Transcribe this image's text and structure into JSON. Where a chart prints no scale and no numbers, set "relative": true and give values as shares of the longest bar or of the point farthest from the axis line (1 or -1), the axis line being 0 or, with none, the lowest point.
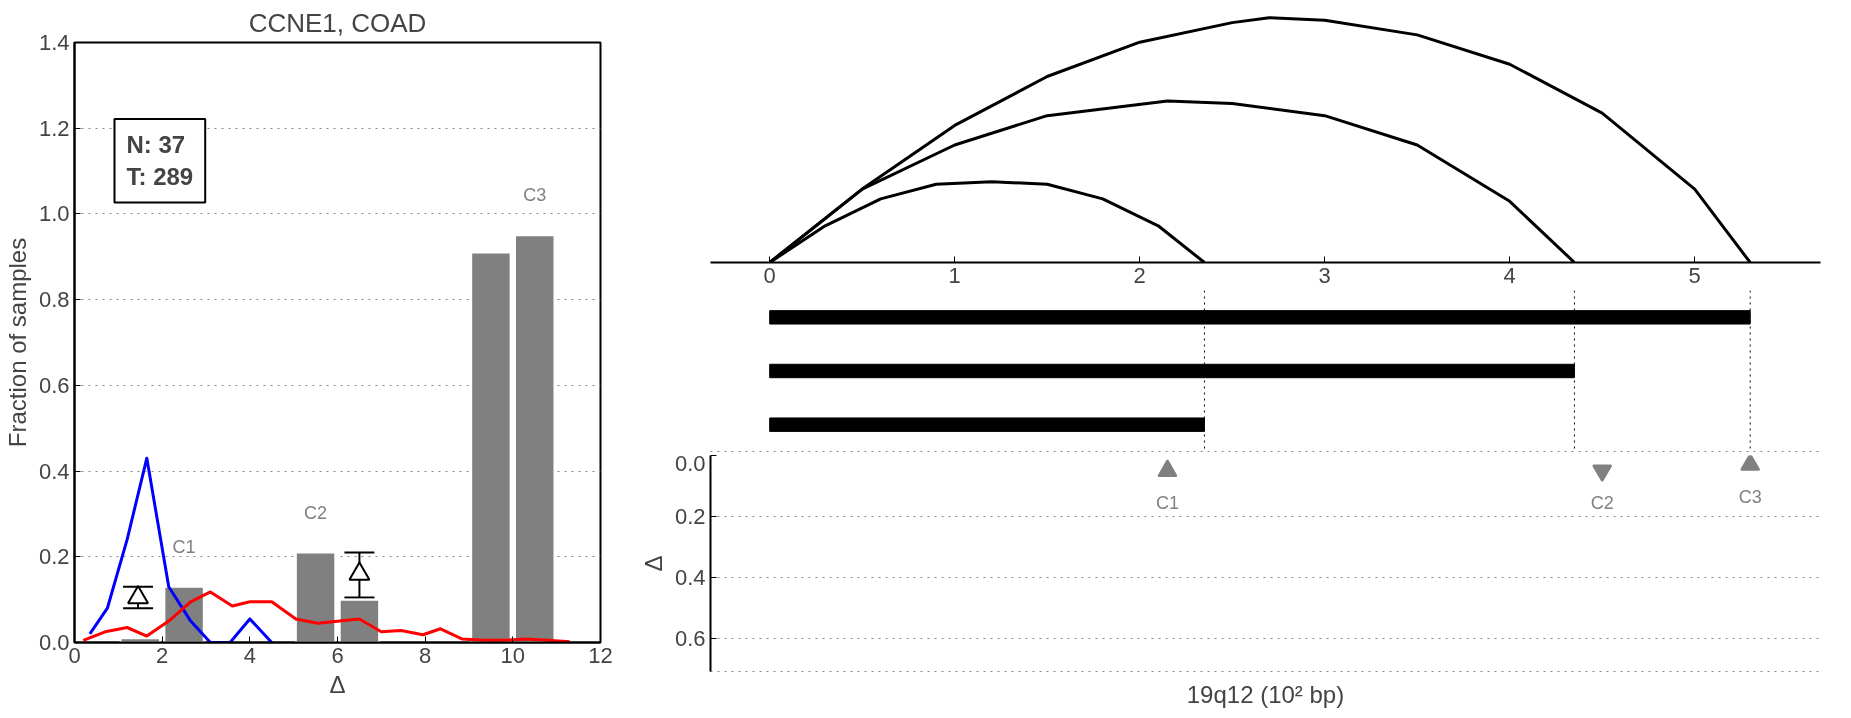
{
  "chart_data": [
    {
      "type": "bar",
      "title": "CCNE1, COAD",
      "xlabel": "Δ",
      "ylabel": "Fraction of samples",
      "x": [
        1.5,
        2.5,
        5.5,
        6.5,
        9.5,
        10.5
      ],
      "series": [
        {
          "type": "bar",
          "color": "#808080",
          "values": [
            0.01,
            0.13,
            0.21,
            0.1,
            0.91,
            0.95
          ]
        },
        {
          "type": "line",
          "color": "#0000ff",
          "x": [
            0.35,
            0.75,
            1.2,
            1.65,
            2.15,
            2.65,
            3.1,
            3.55,
            4.0,
            4.5
          ],
          "values": [
            0.02,
            0.08,
            0.24,
            0.43,
            0.13,
            0.05,
            0.0,
            0.0,
            0.055,
            0.0
          ]
        },
        {
          "type": "line",
          "color": "#ff0000",
          "x": [
            0.2,
            0.7,
            1.2,
            1.65,
            2.15,
            2.65,
            3.1,
            3.6,
            4.0,
            4.5,
            5.05,
            5.55,
            6.05,
            6.5,
            7.0,
            7.45,
            7.95,
            8.35,
            8.85,
            9.35,
            9.8,
            10.3,
            10.8,
            11.3
          ],
          "values": [
            0.005,
            0.025,
            0.035,
            0.015,
            0.05,
            0.095,
            0.118,
            0.085,
            0.095,
            0.095,
            0.055,
            0.045,
            0.05,
            0.055,
            0.025,
            0.028,
            0.018,
            0.032,
            0.008,
            0.005,
            0.005,
            0.008,
            0.005,
            0.002
          ]
        },
        {
          "type": "scatter",
          "color": "#000000",
          "marker": "triangle",
          "x": [
            1.45,
            6.5
          ],
          "values": [
            0.105,
            0.16
          ],
          "errors": [
            [
              0.08,
              0.13
            ],
            [
              0.105,
              0.21
            ]
          ]
        }
      ],
      "xlim": [
        0,
        12
      ],
      "xticks": [
        0,
        2,
        4,
        6,
        8,
        10,
        12
      ],
      "ylim": [
        0,
        1.4
      ],
      "yticks": [
        {
          "value": 0,
          "label": "0.0"
        },
        {
          "value": 0.2,
          "label": "0.2"
        },
        {
          "value": 0.4,
          "label": "0.4"
        },
        {
          "value": 0.6,
          "label": "0.6"
        },
        {
          "value": 0.8,
          "label": "0.8"
        },
        {
          "value": 1.0,
          "label": "1.0"
        },
        {
          "value": 1.2,
          "label": "1.2"
        },
        {
          "value": 1.4,
          "label": "1.4"
        }
      ],
      "grid": "y",
      "annotations": [
        "N: 37\nT: 289",
        {
          "text": "C1",
          "x": 2.5,
          "y": 0.13
        },
        {
          "text": "C2",
          "x": 5.5,
          "y": 0.21
        },
        {
          "text": "C3",
          "x": 10.5,
          "y": 0.95
        }
      ]
    },
    {
      "type": "line",
      "relative": true,
      "xlim": [
        -0.32,
        5.68
      ],
      "xticks": [
        0,
        1,
        2,
        3,
        4,
        5
      ],
      "series": [
        {
          "color": "#000000",
          "x": [
            0,
            0.5,
            1,
            1.5,
            2,
            2.5,
            2.7,
            3,
            3.5,
            4,
            4.5,
            5,
            5.3
          ],
          "values": [
            0,
            0.3,
            0.56,
            0.76,
            0.9,
            0.98,
            1.0,
            0.99,
            0.93,
            0.81,
            0.61,
            0.3,
            0
          ]
        },
        {
          "color": "#000000",
          "x": [
            0,
            0.5,
            1,
            1.5,
            2.15,
            2.5,
            3,
            3.5,
            4,
            4.35
          ],
          "values": [
            0,
            0.3,
            0.48,
            0.6,
            0.66,
            0.65,
            0.6,
            0.48,
            0.25,
            0
          ]
        },
        {
          "color": "#000000",
          "x": [
            0,
            0.3,
            0.6,
            0.9,
            1.2,
            1.5,
            1.8,
            2.1,
            2.35
          ],
          "values": [
            0,
            0.15,
            0.26,
            0.32,
            0.33,
            0.32,
            0.26,
            0.15,
            0
          ]
        }
      ]
    },
    {
      "type": "bar",
      "orientation": "horizontal",
      "categories": [
        null,
        null,
        null
      ],
      "values": [
        5.3,
        4.35,
        2.35
      ],
      "color": "#000000",
      "xlim": [
        -0.32,
        5.68
      ],
      "tick_labels": false,
      "ref_lines": [
        {
          "axis": "x",
          "value": 2.35,
          "line_style": "dotted"
        },
        {
          "axis": "x",
          "value": 4.35,
          "line_style": "dotted"
        },
        {
          "axis": "x",
          "value": 5.3,
          "line_style": "dotted"
        }
      ]
    },
    {
      "type": "scatter",
      "xlabel": "19q12 (10² bp)",
      "ylabel": "Δ",
      "xlim": [
        -0.32,
        5.68
      ],
      "ylim": [
        0.71,
        0
      ],
      "tick_labels": "y",
      "grid": "y",
      "yticks": [
        {
          "value": 0,
          "label": "0.0"
        },
        {
          "value": 0.2,
          "label": "0.2"
        },
        {
          "value": 0.4,
          "label": "0.4"
        },
        {
          "value": 0.6,
          "label": "0.6"
        }
      ],
      "series": [
        {
          "color": "#808080",
          "marker": "triangle",
          "x": [
            2.15
          ],
          "values": [
            0.05
          ]
        },
        {
          "color": "#808080",
          "marker": "triangle_down",
          "x": [
            4.5
          ],
          "values": [
            0.05
          ]
        },
        {
          "color": "#808080",
          "marker": "triangle",
          "x": [
            5.3
          ],
          "values": [
            0.03
          ]
        }
      ],
      "annotations": [
        {
          "text": "C1",
          "x": 2.15,
          "y": 0.05
        },
        {
          "text": "C2",
          "x": 4.5,
          "y": 0.05
        },
        {
          "text": "C3",
          "x": 5.3,
          "y": 0.03
        }
      ]
    }
  ]
}
